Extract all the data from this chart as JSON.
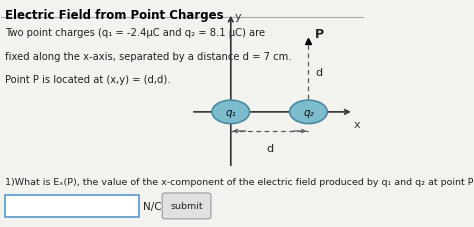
{
  "title": "Electric Field from Point Charges",
  "problem_text_line1": "Two point charges (q₁ = -2.4μC and q₂ = 8.1 μC) are",
  "problem_text_line2": "fixed along the x-axis, separated by a distance d = 7 cm.",
  "problem_text_line3": "Point P is located at (x,y) = (d,d).",
  "question_text": "1)What is Eₓ(P), the value of the x-component of the electric field produced by q₁ and q₂ at point P?",
  "unit_text": "N/C",
  "submit_text": "submit",
  "q1_label": "q₁",
  "q2_label": "q₂",
  "P_label": "P",
  "d_label": "d",
  "x_label": "x",
  "y_label": "y",
  "bg_color": "#f2f2ee",
  "circle_fill": "#7dbccc",
  "circle_edge": "#4a8aa0",
  "axis_color": "#333333",
  "dashed_color": "#555555",
  "text_color": "#222222",
  "title_color": "#000000",
  "input_box_color": "#ffffff",
  "input_box_edge": "#5599cc",
  "title_line_color": "#aaaaaa"
}
